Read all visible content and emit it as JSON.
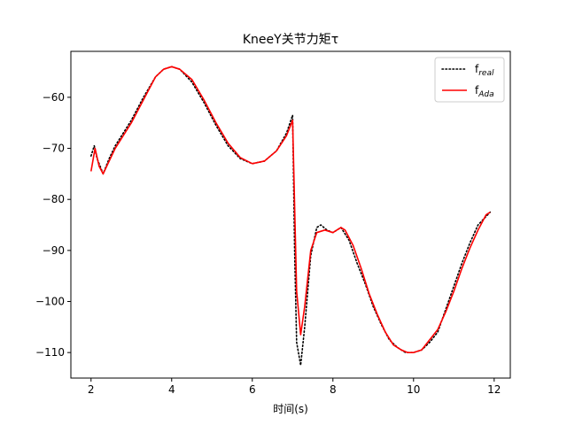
{
  "chart_data": {
    "type": "line",
    "title": "KneeY关节力矩τ",
    "xlabel": "时间(s)",
    "ylabel": "",
    "xlim": [
      1.5,
      12.4
    ],
    "ylim": [
      -115,
      -51
    ],
    "xticks": [
      2,
      4,
      6,
      8,
      10,
      12
    ],
    "yticks": [
      -110,
      -100,
      -90,
      -80,
      -70,
      -60
    ],
    "grid": false,
    "legend_position": "top-right",
    "series": [
      {
        "name": "f",
        "name_sub": "real",
        "color": "#000000",
        "style": "dotted",
        "points": [
          [
            2.0,
            -71.5
          ],
          [
            2.08,
            -69.5
          ],
          [
            2.15,
            -72.0
          ],
          [
            2.3,
            -75.0
          ],
          [
            2.45,
            -72.0
          ],
          [
            2.6,
            -69.5
          ],
          [
            3.0,
            -64.5
          ],
          [
            3.3,
            -60.0
          ],
          [
            3.6,
            -56.0
          ],
          [
            3.8,
            -54.5
          ],
          [
            4.0,
            -54.0
          ],
          [
            4.2,
            -54.5
          ],
          [
            4.5,
            -57.0
          ],
          [
            4.8,
            -61.0
          ],
          [
            5.1,
            -65.5
          ],
          [
            5.4,
            -69.5
          ],
          [
            5.7,
            -72.0
          ],
          [
            6.0,
            -73.0
          ],
          [
            6.3,
            -72.5
          ],
          [
            6.6,
            -70.5
          ],
          [
            6.85,
            -67.0
          ],
          [
            7.0,
            -63.5
          ],
          [
            7.05,
            -90.0
          ],
          [
            7.1,
            -108.0
          ],
          [
            7.2,
            -112.5
          ],
          [
            7.3,
            -105.0
          ],
          [
            7.45,
            -91.0
          ],
          [
            7.6,
            -85.5
          ],
          [
            7.7,
            -85.0
          ],
          [
            7.85,
            -86.0
          ],
          [
            8.0,
            -86.5
          ],
          [
            8.2,
            -85.5
          ],
          [
            8.4,
            -88.0
          ],
          [
            8.6,
            -92.5
          ],
          [
            8.8,
            -96.5
          ],
          [
            9.0,
            -101.0
          ],
          [
            9.2,
            -104.5
          ],
          [
            9.4,
            -107.5
          ],
          [
            9.6,
            -109.0
          ],
          [
            9.8,
            -110.0
          ],
          [
            10.0,
            -110.0
          ],
          [
            10.2,
            -109.5
          ],
          [
            10.4,
            -108.0
          ],
          [
            10.6,
            -106.0
          ],
          [
            10.8,
            -101.5
          ],
          [
            11.0,
            -97.0
          ],
          [
            11.2,
            -92.5
          ],
          [
            11.4,
            -88.5
          ],
          [
            11.6,
            -85.0
          ],
          [
            11.9,
            -82.5
          ]
        ]
      },
      {
        "name": "f",
        "name_sub": "Ada",
        "color": "#ff0000",
        "style": "solid",
        "points": [
          [
            2.0,
            -74.5
          ],
          [
            2.1,
            -70.0
          ],
          [
            2.2,
            -73.5
          ],
          [
            2.3,
            -75.0
          ],
          [
            2.45,
            -72.5
          ],
          [
            2.6,
            -70.0
          ],
          [
            3.0,
            -65.0
          ],
          [
            3.3,
            -60.5
          ],
          [
            3.6,
            -56.0
          ],
          [
            3.8,
            -54.5
          ],
          [
            4.0,
            -54.0
          ],
          [
            4.2,
            -54.5
          ],
          [
            4.5,
            -56.5
          ],
          [
            4.8,
            -60.5
          ],
          [
            5.1,
            -65.0
          ],
          [
            5.4,
            -69.0
          ],
          [
            5.7,
            -71.8
          ],
          [
            6.0,
            -73.0
          ],
          [
            6.3,
            -72.5
          ],
          [
            6.6,
            -70.5
          ],
          [
            6.85,
            -67.5
          ],
          [
            7.0,
            -64.5
          ],
          [
            7.1,
            -98.0
          ],
          [
            7.2,
            -106.5
          ],
          [
            7.3,
            -101.0
          ],
          [
            7.45,
            -90.0
          ],
          [
            7.6,
            -86.5
          ],
          [
            7.8,
            -86.0
          ],
          [
            8.0,
            -86.5
          ],
          [
            8.2,
            -85.5
          ],
          [
            8.3,
            -86.0
          ],
          [
            8.5,
            -89.0
          ],
          [
            8.7,
            -93.5
          ],
          [
            8.9,
            -98.5
          ],
          [
            9.1,
            -102.5
          ],
          [
            9.3,
            -106.0
          ],
          [
            9.5,
            -108.5
          ],
          [
            9.7,
            -109.5
          ],
          [
            9.85,
            -110.0
          ],
          [
            10.0,
            -110.0
          ],
          [
            10.2,
            -109.5
          ],
          [
            10.4,
            -107.5
          ],
          [
            10.6,
            -105.5
          ],
          [
            10.8,
            -102.0
          ],
          [
            11.0,
            -98.0
          ],
          [
            11.2,
            -93.5
          ],
          [
            11.4,
            -89.5
          ],
          [
            11.6,
            -86.0
          ],
          [
            11.8,
            -83.0
          ],
          [
            11.9,
            -82.5
          ]
        ]
      }
    ]
  }
}
